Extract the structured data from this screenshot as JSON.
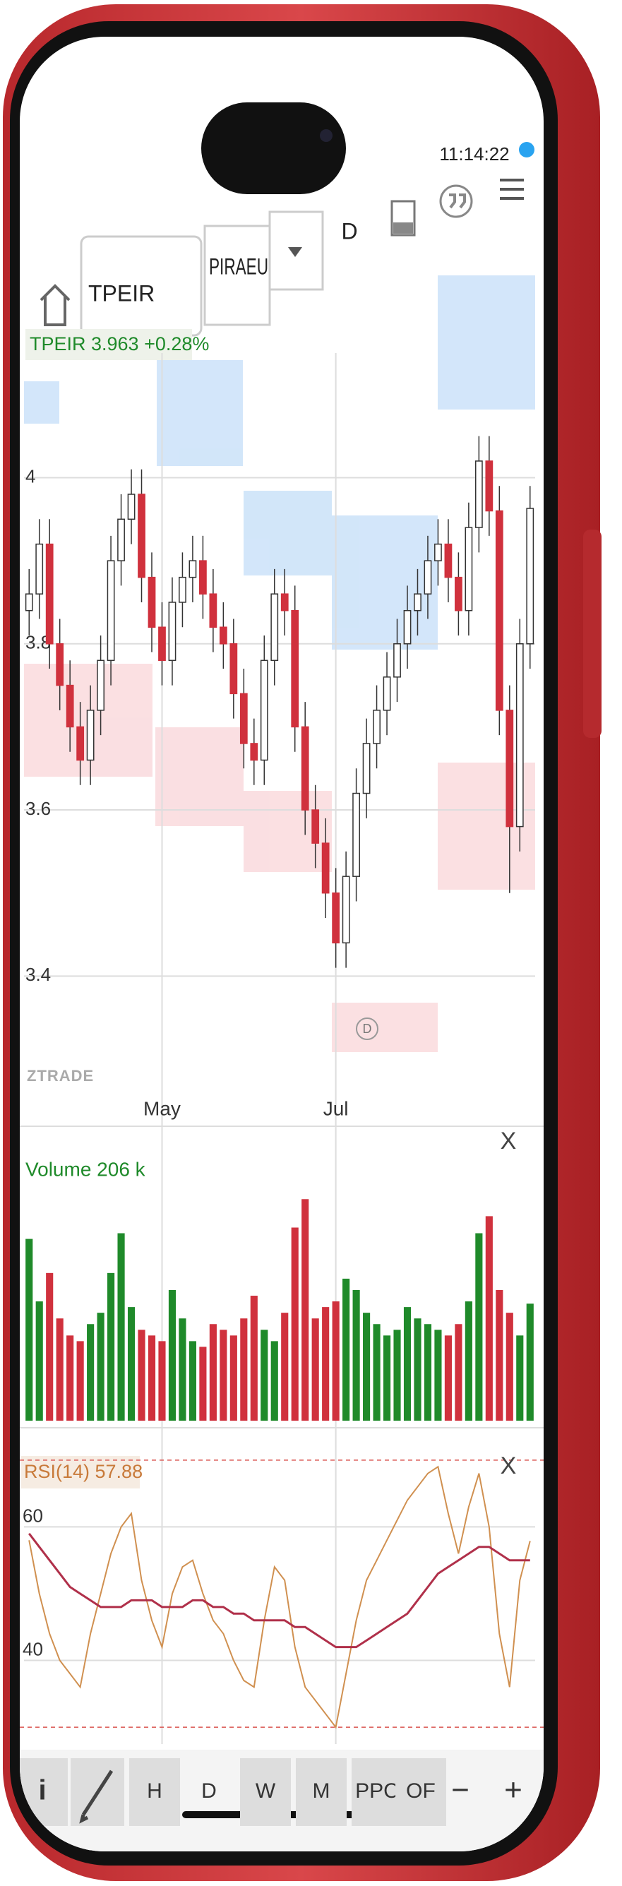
{
  "status": {
    "time": "11:14:22"
  },
  "toolbar": {
    "symbol": "TPEIR",
    "exchange": "PIRAEU",
    "period": "D"
  },
  "quote": "TPEIR 3.963 +0.28%",
  "watermark": "ZTRADE",
  "chart_data": [
    {
      "type": "candlestick",
      "categories": [
        null,
        null,
        null,
        null,
        null,
        null,
        null,
        null,
        null,
        null,
        null,
        null,
        null,
        "May",
        null,
        null,
        null,
        null,
        null,
        null,
        null,
        null,
        null,
        null,
        null,
        null,
        null,
        null,
        null,
        null,
        "Jul",
        null,
        null,
        null,
        null,
        null,
        null,
        null,
        null,
        null,
        null,
        null,
        null,
        null,
        null,
        null,
        null,
        null,
        null,
        null
      ],
      "open": [
        3.84,
        3.86,
        3.92,
        3.8,
        3.75,
        3.7,
        3.66,
        3.72,
        3.78,
        3.9,
        3.95,
        3.98,
        3.88,
        3.82,
        3.78,
        3.85,
        3.88,
        3.9,
        3.86,
        3.82,
        3.8,
        3.74,
        3.68,
        3.66,
        3.78,
        3.86,
        3.84,
        3.7,
        3.6,
        3.56,
        3.5,
        3.44,
        3.52,
        3.62,
        3.68,
        3.72,
        3.76,
        3.8,
        3.84,
        3.86,
        3.9,
        3.92,
        3.88,
        3.84,
        3.94,
        4.02,
        3.96,
        3.72,
        3.58,
        3.8
      ],
      "high": [
        3.89,
        3.95,
        3.95,
        3.83,
        3.78,
        3.73,
        3.75,
        3.81,
        3.93,
        3.98,
        4.01,
        4.01,
        3.91,
        3.85,
        3.88,
        3.91,
        3.93,
        3.93,
        3.89,
        3.85,
        3.83,
        3.77,
        3.71,
        3.81,
        3.89,
        3.89,
        3.87,
        3.73,
        3.63,
        3.59,
        3.53,
        3.55,
        3.65,
        3.71,
        3.75,
        3.79,
        3.83,
        3.87,
        3.89,
        3.93,
        3.95,
        3.95,
        3.91,
        3.97,
        4.05,
        4.05,
        3.99,
        3.75,
        3.83,
        3.99
      ],
      "low": [
        3.81,
        3.83,
        3.77,
        3.72,
        3.67,
        3.63,
        3.63,
        3.69,
        3.75,
        3.87,
        3.92,
        3.85,
        3.79,
        3.75,
        3.75,
        3.82,
        3.85,
        3.83,
        3.79,
        3.77,
        3.71,
        3.65,
        3.63,
        3.63,
        3.75,
        3.81,
        3.67,
        3.57,
        3.53,
        3.47,
        3.41,
        3.41,
        3.49,
        3.59,
        3.65,
        3.69,
        3.73,
        3.77,
        3.81,
        3.83,
        3.87,
        3.85,
        3.81,
        3.81,
        3.91,
        3.93,
        3.69,
        3.5,
        3.55,
        3.77
      ],
      "close": [
        3.86,
        3.92,
        3.8,
        3.75,
        3.7,
        3.66,
        3.72,
        3.78,
        3.9,
        3.95,
        3.98,
        3.88,
        3.82,
        3.78,
        3.85,
        3.88,
        3.9,
        3.86,
        3.82,
        3.8,
        3.74,
        3.68,
        3.66,
        3.78,
        3.86,
        3.84,
        3.7,
        3.6,
        3.56,
        3.5,
        3.44,
        3.52,
        3.62,
        3.68,
        3.72,
        3.76,
        3.8,
        3.84,
        3.86,
        3.9,
        3.92,
        3.88,
        3.84,
        3.94,
        4.02,
        3.96,
        3.72,
        3.58,
        3.8,
        3.963
      ],
      "ylim": [
        3.3,
        4.15
      ],
      "yticks": [
        3.4,
        3.6,
        3.8,
        4
      ],
      "grid": true,
      "up_color": "#ffffff",
      "down_color": "#d0313d",
      "event_marker": "D"
    },
    {
      "type": "bar",
      "title": "Volume 206 k",
      "close": "X",
      "values": [
        320,
        210,
        260,
        180,
        150,
        140,
        170,
        190,
        260,
        330,
        200,
        160,
        150,
        140,
        230,
        180,
        140,
        130,
        170,
        160,
        150,
        180,
        220,
        160,
        140,
        190,
        340,
        390,
        180,
        200,
        210,
        250,
        230,
        190,
        170,
        150,
        160,
        200,
        180,
        170,
        160,
        150,
        170,
        210,
        330,
        360,
        230,
        190,
        150,
        206
      ],
      "ylim": [
        0,
        450
      ],
      "up_color": "#1f8a2a",
      "down_color": "#d0313d"
    },
    {
      "type": "line",
      "title": "RSI(14) 57.88",
      "close": "X",
      "series": [
        {
          "color": "#d09050",
          "values": [
            58,
            50,
            44,
            40,
            38,
            36,
            44,
            50,
            56,
            60,
            62,
            52,
            46,
            42,
            50,
            54,
            55,
            50,
            46,
            44,
            40,
            37,
            36,
            46,
            54,
            52,
            42,
            36,
            34,
            32,
            30,
            38,
            46,
            52,
            55,
            58,
            61,
            64,
            66,
            68,
            69,
            62,
            56,
            63,
            68,
            60,
            44,
            36,
            52,
            57.88
          ]
        },
        {
          "color": "#b0304a",
          "values": [
            59,
            57,
            55,
            53,
            51,
            50,
            49,
            48,
            48,
            48,
            49,
            49,
            49,
            48,
            48,
            48,
            49,
            49,
            48,
            48,
            47,
            47,
            46,
            46,
            46,
            46,
            45,
            45,
            44,
            43,
            42,
            42,
            42,
            43,
            44,
            45,
            46,
            47,
            49,
            51,
            53,
            54,
            55,
            56,
            57,
            57,
            56,
            55,
            55,
            55
          ]
        }
      ],
      "ylim": [
        28,
        74
      ],
      "yticks": [
        40,
        60
      ],
      "levels": [
        30,
        70
      ],
      "level_color": "#d9534f"
    }
  ],
  "tabs": [
    "i",
    "H",
    "D",
    "W",
    "M",
    "PPC",
    "OF",
    "−",
    "+"
  ]
}
